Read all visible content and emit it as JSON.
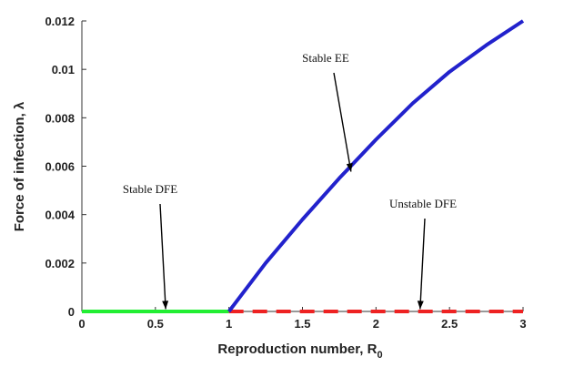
{
  "chart_data": {
    "type": "line",
    "title": "",
    "xlabel": "Reproduction number, R",
    "xlabel_sub": "0",
    "ylabel": "Force of infection, λ",
    "xlim": [
      0,
      3
    ],
    "ylim": [
      0,
      0.012
    ],
    "xticks": [
      {
        "value": 0,
        "label": "0"
      },
      {
        "value": 0.5,
        "label": "0.5"
      },
      {
        "value": 1,
        "label": "1"
      },
      {
        "value": 1.5,
        "label": "1.5"
      },
      {
        "value": 2,
        "label": "2"
      },
      {
        "value": 2.5,
        "label": "2.5"
      },
      {
        "value": 3,
        "label": "3"
      }
    ],
    "yticks": [
      {
        "value": 0,
        "label": "0"
      },
      {
        "value": 0.002,
        "label": "0.002"
      },
      {
        "value": 0.004,
        "label": "0.004"
      },
      {
        "value": 0.006,
        "label": "0.006"
      },
      {
        "value": 0.008,
        "label": "0.008"
      },
      {
        "value": 0.01,
        "label": "0.01"
      },
      {
        "value": 0.012,
        "label": "0.012"
      }
    ],
    "grid": false,
    "series": [
      {
        "key": "dfe-stable",
        "color": "#22ee33",
        "style": "solid",
        "x": [
          0,
          1
        ],
        "y": [
          0,
          0
        ]
      },
      {
        "key": "dfe-unstable",
        "color": "#ee2222",
        "style": "dashed",
        "x": [
          1,
          3
        ],
        "y": [
          0,
          0
        ]
      },
      {
        "key": "ee-stable",
        "color": "#2222cc",
        "style": "solid",
        "x": [
          1.0,
          1.25,
          1.5,
          1.75,
          2.0,
          2.25,
          2.5,
          2.75,
          3.0
        ],
        "y": [
          0.0,
          0.002,
          0.0038,
          0.0055,
          0.0071,
          0.0086,
          0.0099,
          0.011,
          0.012
        ]
      }
    ],
    "annotations": [
      {
        "text": "Stable EE",
        "target": [
          1.83,
          0.0057
        ]
      },
      {
        "text": "Stable DFE",
        "target": [
          0.57,
          2e-05
        ]
      },
      {
        "text": "Unstable DFE",
        "target": [
          2.3,
          2e-05
        ]
      }
    ]
  }
}
